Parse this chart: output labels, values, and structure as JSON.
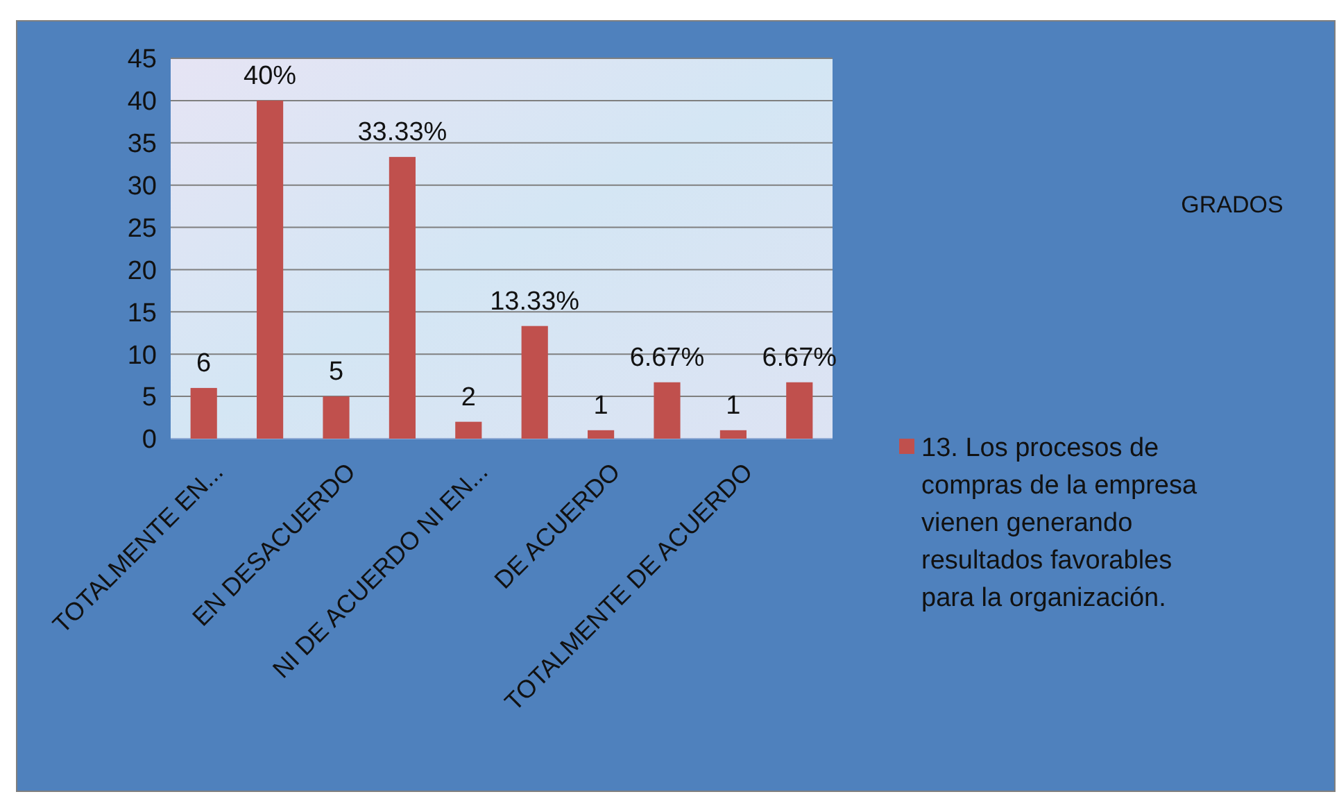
{
  "chart_data": {
    "type": "bar",
    "title": "GRADOS",
    "categories": [
      "TOTALMENTE EN...",
      null,
      "EN DESACUERDO",
      null,
      "NI DE ACUERDO NI EN...",
      null,
      "DE ACUERDO",
      null,
      "TOTALMENTE DE ACUERDO",
      null
    ],
    "series": [
      {
        "name": "13. Los procesos de compras de la empresa vienen generando resultados favorables para la organización.",
        "color": "#c0504d",
        "values": [
          6,
          40,
          5,
          33.33,
          2,
          13.33,
          1,
          6.67,
          1,
          6.67
        ],
        "value_labels": [
          "6",
          "40%",
          "5",
          "33.33%",
          "2",
          "13.33%",
          "1",
          "6.67%",
          "1",
          "6.67%"
        ]
      }
    ],
    "ylim": [
      0,
      45
    ],
    "yticks": [
      0,
      5,
      10,
      15,
      20,
      25,
      30,
      35,
      40,
      45
    ],
    "grid": "y",
    "legend": "right"
  }
}
